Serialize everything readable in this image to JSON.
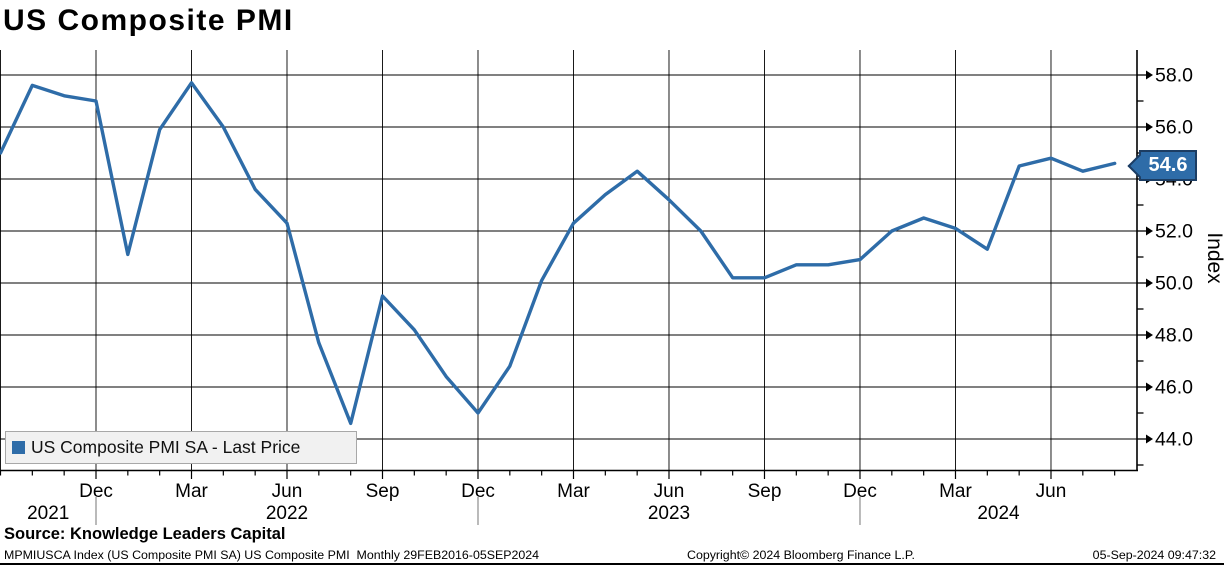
{
  "title": "US Composite PMI",
  "chart_data": {
    "type": "line",
    "title": "US Composite PMI",
    "ylabel": "Index",
    "xlabel": "",
    "grid": true,
    "legend_position": "bottom-left",
    "line_color": "#2E6CA8",
    "last_value": 54.6,
    "ylim": [
      42.8,
      59.2
    ],
    "x": [
      "Sep 2021",
      "Oct 2021",
      "Nov 2021",
      "Dec 2021",
      "Jan 2022",
      "Feb 2022",
      "Mar 2022",
      "Apr 2022",
      "May 2022",
      "Jun 2022",
      "Jul 2022",
      "Aug 2022",
      "Sep 2022",
      "Oct 2022",
      "Nov 2022",
      "Dec 2022",
      "Jan 2023",
      "Feb 2023",
      "Mar 2023",
      "Apr 2023",
      "May 2023",
      "Jun 2023",
      "Jul 2023",
      "Aug 2023",
      "Sep 2023",
      "Oct 2023",
      "Nov 2023",
      "Dec 2023",
      "Jan 2024",
      "Feb 2024",
      "Mar 2024",
      "Apr 2024",
      "May 2024",
      "Jun 2024",
      "Jul 2024",
      "Aug 2024"
    ],
    "values": [
      55.0,
      57.6,
      57.2,
      57.0,
      51.1,
      55.9,
      57.7,
      56.0,
      53.6,
      52.3,
      47.7,
      44.6,
      49.5,
      48.2,
      46.4,
      45.0,
      46.8,
      50.1,
      52.3,
      53.4,
      54.3,
      53.2,
      52.0,
      50.2,
      50.2,
      50.7,
      50.7,
      50.9,
      52.0,
      52.5,
      52.1,
      51.3,
      54.5,
      54.8,
      54.3,
      54.6
    ],
    "x_tick_labels": [
      "Dec",
      "Mar",
      "Jun",
      "Sep",
      "Dec",
      "Mar",
      "Jun",
      "Sep",
      "Dec",
      "Mar",
      "Jun"
    ],
    "year_labels": [
      "2021",
      "2022",
      "2023",
      "2024"
    ],
    "y_major_ticks": [
      58,
      56,
      54,
      52,
      50,
      48,
      46,
      44
    ],
    "y_tick_labels": [
      "58.0",
      "56.0",
      "54.0",
      "52.0",
      "50.0",
      "48.0",
      "46.0",
      "44.0"
    ],
    "y_minor_ticks": [
      57,
      55,
      53,
      51,
      49,
      47,
      45,
      43
    ]
  },
  "legend": {
    "label": "US Composite PMI SA - Last Price",
    "marker_color": "#2E6CA8"
  },
  "callout": {
    "value": "54.6",
    "bg_color": "#2E6CA8",
    "border_color": "#1C3D63",
    "text_color": "#FFFFFF"
  },
  "footer": {
    "source": "Source: Knowledge Leaders Capital",
    "meta": "MPMIUSCA Index (US Composite PMI SA) US Composite PMI  Monthly 29FEB2016-05SEP2024",
    "copyright": "Copyright© 2024 Bloomberg Finance L.P.",
    "timestamp": "05-Sep-2024 09:47:32"
  }
}
